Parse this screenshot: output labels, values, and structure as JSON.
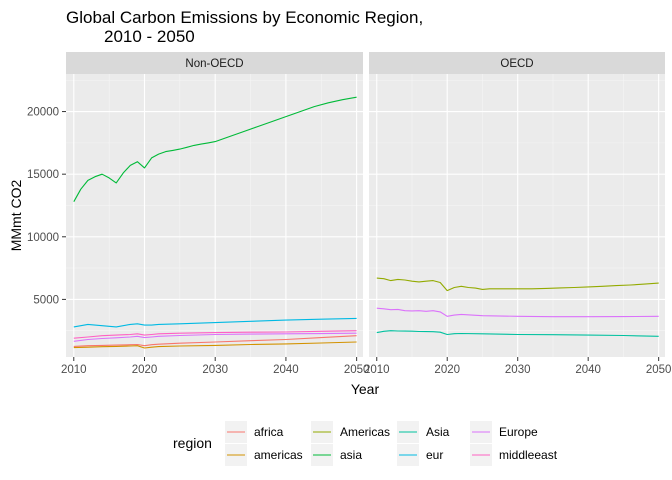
{
  "chart_data": {
    "type": "line",
    "title_lines": [
      "Global Carbon Emissions by Economic Region,",
      "2010 - 2050"
    ],
    "xlabel": "Year",
    "ylabel": "MMmt CO2",
    "xlim": [
      2008.9,
      2050.9
    ],
    "ylim": [
      400,
      23000
    ],
    "x_ticks": [
      2010,
      2020,
      2030,
      2040,
      2050
    ],
    "y_ticks": [
      5000,
      10000,
      15000,
      20000
    ],
    "x_tick_labels": [
      "2010",
      "2020",
      "2030",
      "2040",
      "2050"
    ],
    "y_tick_labels": [
      "5000",
      "10000",
      "15000",
      "20000"
    ],
    "grid": true,
    "legend": {
      "title": "region",
      "placement": "bottom",
      "entries": [
        {
          "name": "africa",
          "color": "#F8766D"
        },
        {
          "name": "americas",
          "color": "#D39200"
        },
        {
          "name": "Americas",
          "color": "#93AA00"
        },
        {
          "name": "asia",
          "color": "#00BA38"
        },
        {
          "name": "Asia",
          "color": "#00C19F"
        },
        {
          "name": "eur",
          "color": "#00B9E3"
        },
        {
          "name": "Europe",
          "color": "#DB72FB"
        },
        {
          "name": "middleeast",
          "color": "#FF61C3"
        }
      ]
    },
    "facets": [
      {
        "label": "Non-OECD",
        "series": [
          {
            "name": "asia",
            "color": "#00BA38",
            "x": [
              2010,
              2011,
              2012,
              2013,
              2014,
              2015,
              2016,
              2017,
              2018,
              2019,
              2020,
              2021,
              2022,
              2023,
              2024,
              2025,
              2026,
              2027,
              2028,
              2029,
              2030,
              2032,
              2034,
              2036,
              2038,
              2040,
              2042,
              2044,
              2046,
              2048,
              2050
            ],
            "y": [
              12800,
              13800,
              14500,
              14800,
              15000,
              14700,
              14300,
              15100,
              15700,
              16000,
              15500,
              16300,
              16600,
              16800,
              16900,
              17000,
              17150,
              17300,
              17400,
              17500,
              17600,
              18000,
              18400,
              18800,
              19200,
              19600,
              20000,
              20400,
              20700,
              20950,
              21150
            ]
          },
          {
            "name": "eur",
            "color": "#00B9E3",
            "x": [
              2010,
              2012,
              2014,
              2016,
              2018,
              2019,
              2020,
              2021,
              2022,
              2025,
              2030,
              2035,
              2040,
              2045,
              2050
            ],
            "y": [
              2800,
              3000,
              2900,
              2800,
              3000,
              3050,
              2950,
              2950,
              3000,
              3050,
              3150,
              3250,
              3350,
              3420,
              3480
            ]
          },
          {
            "name": "middleeast",
            "color": "#FF61C3",
            "x": [
              2010,
              2012,
              2014,
              2016,
              2018,
              2019,
              2020,
              2021,
              2022,
              2025,
              2030,
              2035,
              2040,
              2045,
              2050
            ],
            "y": [
              1900,
              2000,
              2100,
              2150,
              2200,
              2250,
              2150,
              2200,
              2250,
              2300,
              2350,
              2380,
              2400,
              2450,
              2500
            ]
          },
          {
            "name": "Europe",
            "color": "#DB72FB",
            "x": [
              2010,
              2012,
              2014,
              2016,
              2018,
              2019,
              2020,
              2021,
              2022,
              2025,
              2030,
              2035,
              2040,
              2045,
              2050
            ],
            "y": [
              1650,
              1800,
              1880,
              1930,
              2000,
              2050,
              1950,
              2000,
              2050,
              2120,
              2200,
              2230,
              2250,
              2270,
              2300
            ]
          },
          {
            "name": "africa",
            "color": "#F8766D",
            "x": [
              2010,
              2012,
              2014,
              2016,
              2018,
              2019,
              2020,
              2021,
              2022,
              2025,
              2030,
              2035,
              2040,
              2045,
              2050
            ],
            "y": [
              1250,
              1300,
              1330,
              1350,
              1380,
              1400,
              1300,
              1380,
              1420,
              1500,
              1600,
              1700,
              1800,
              1950,
              2100
            ]
          },
          {
            "name": "americas",
            "color": "#D39200",
            "x": [
              2010,
              2012,
              2014,
              2016,
              2018,
              2019,
              2020,
              2021,
              2022,
              2025,
              2030,
              2035,
              2040,
              2045,
              2050
            ],
            "y": [
              1150,
              1180,
              1220,
              1250,
              1280,
              1300,
              1120,
              1180,
              1230,
              1280,
              1330,
              1400,
              1450,
              1520,
              1600
            ]
          }
        ]
      },
      {
        "label": "OECD",
        "series": [
          {
            "name": "Americas",
            "color": "#93AA00",
            "x": [
              2010,
              2011,
              2012,
              2013,
              2014,
              2015,
              2016,
              2017,
              2018,
              2019,
              2020,
              2021,
              2022,
              2023,
              2024,
              2025,
              2026,
              2028,
              2030,
              2032,
              2034,
              2036,
              2038,
              2040,
              2042,
              2044,
              2046,
              2048,
              2050
            ],
            "y": [
              6700,
              6650,
              6500,
              6600,
              6550,
              6450,
              6400,
              6450,
              6500,
              6350,
              5700,
              5950,
              6050,
              5950,
              5900,
              5800,
              5850,
              5850,
              5850,
              5850,
              5880,
              5920,
              5950,
              6000,
              6050,
              6100,
              6150,
              6220,
              6300
            ]
          },
          {
            "name": "Europe",
            "color": "#DB72FB",
            "x": [
              2010,
              2011,
              2012,
              2013,
              2014,
              2015,
              2016,
              2017,
              2018,
              2019,
              2020,
              2021,
              2022,
              2025,
              2030,
              2035,
              2040,
              2045,
              2050
            ],
            "y": [
              4300,
              4250,
              4180,
              4200,
              4100,
              4080,
              4100,
              4050,
              4100,
              4000,
              3650,
              3750,
              3800,
              3700,
              3650,
              3620,
              3620,
              3630,
              3650
            ]
          },
          {
            "name": "Asia",
            "color": "#00C19F",
            "x": [
              2010,
              2011,
              2012,
              2013,
              2014,
              2015,
              2016,
              2017,
              2018,
              2019,
              2020,
              2021,
              2022,
              2025,
              2030,
              2035,
              2040,
              2045,
              2050
            ],
            "y": [
              2350,
              2450,
              2500,
              2480,
              2470,
              2460,
              2440,
              2430,
              2420,
              2380,
              2200,
              2260,
              2280,
              2250,
              2200,
              2180,
              2150,
              2120,
              2050
            ]
          }
        ]
      }
    ]
  }
}
